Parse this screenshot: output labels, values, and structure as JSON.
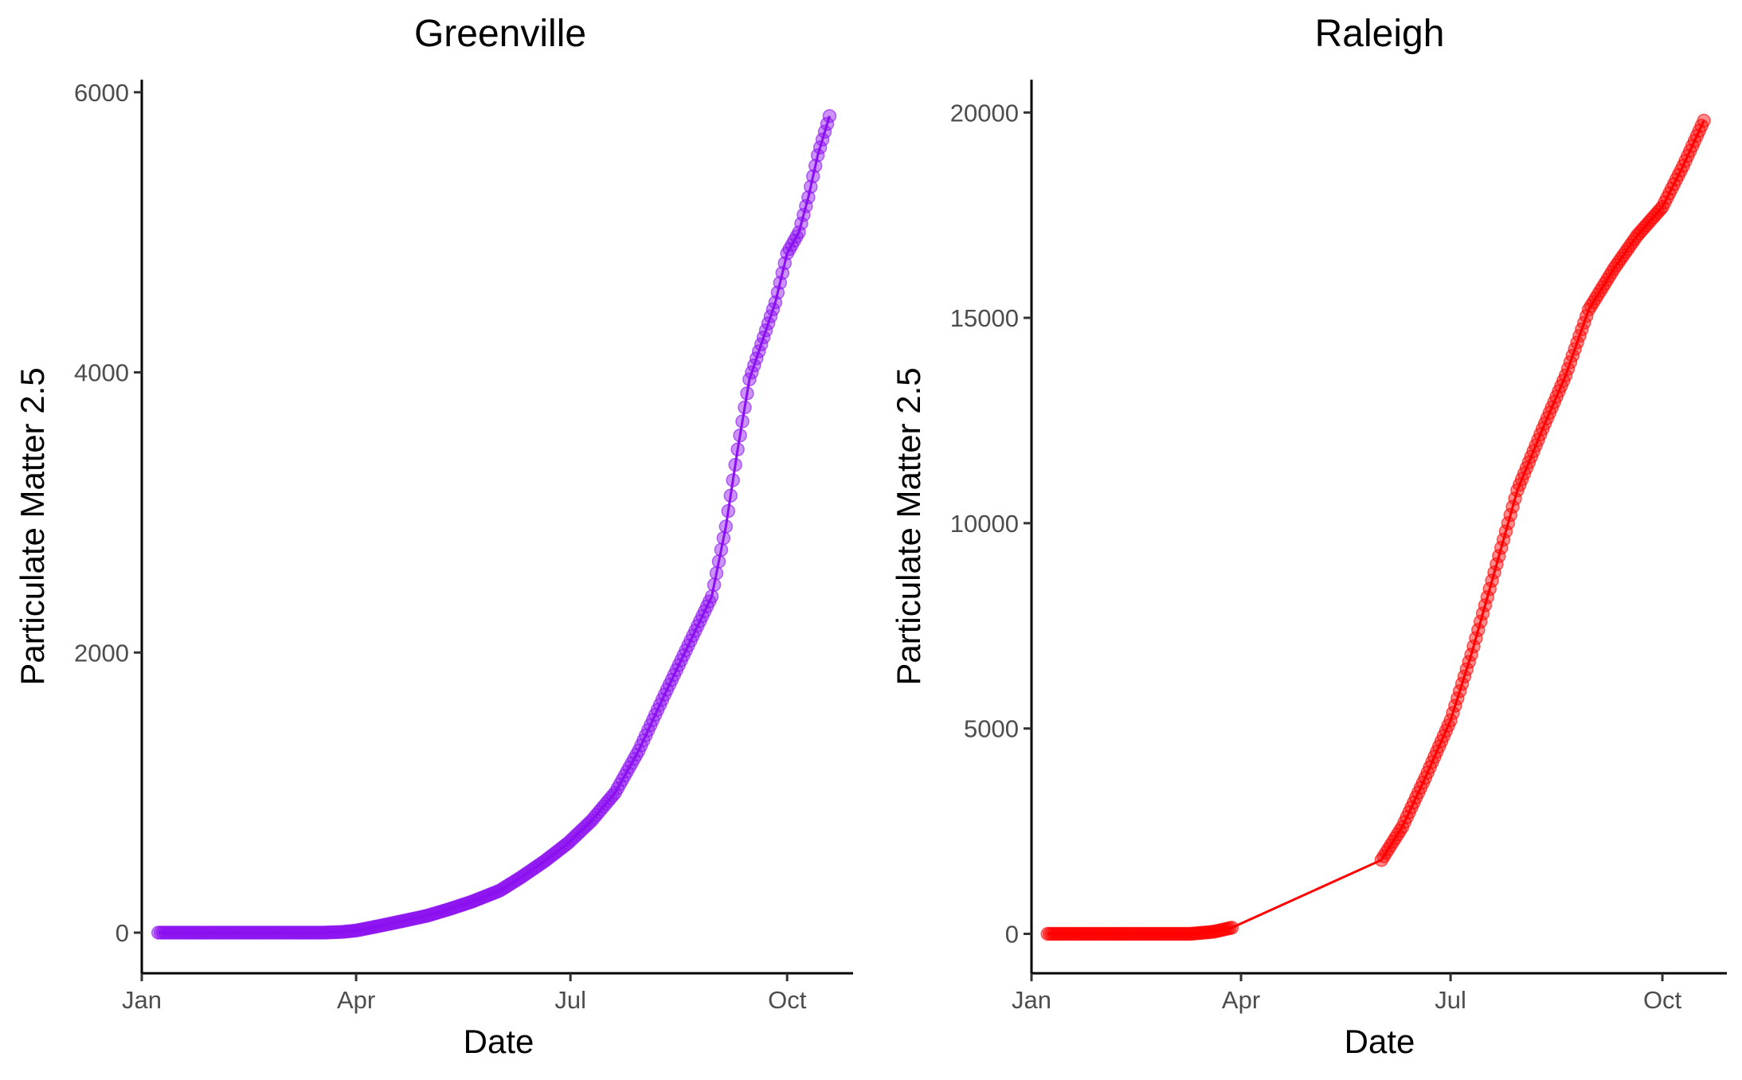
{
  "chart_data": [
    {
      "type": "line",
      "title": "Greenville",
      "xlabel": "Date",
      "ylabel": "Particulate Matter 2.5",
      "xlim": [
        "2020-01-01",
        "2020-10-29"
      ],
      "ylim": [
        -290,
        6090
      ],
      "x_ticks": [
        {
          "date": "2020-01-01",
          "label": "Jan"
        },
        {
          "date": "2020-04-01",
          "label": "Apr"
        },
        {
          "date": "2020-07-01",
          "label": "Jul"
        },
        {
          "date": "2020-10-01",
          "label": "Oct"
        }
      ],
      "y_ticks": [
        0,
        2000,
        4000,
        6000
      ],
      "grid": false,
      "legend": "none",
      "color": "#8b0ff0",
      "marker": "circle",
      "start_date": "2020-01-08",
      "end_date": "2020-10-19",
      "points": [
        [
          "2020-01-08",
          0
        ],
        [
          "2020-03-18",
          0
        ],
        [
          "2020-03-26",
          5
        ],
        [
          "2020-04-01",
          15
        ],
        [
          "2020-04-10",
          45
        ],
        [
          "2020-04-20",
          80
        ],
        [
          "2020-05-01",
          120
        ],
        [
          "2020-05-10",
          165
        ],
        [
          "2020-05-20",
          220
        ],
        [
          "2020-06-01",
          300
        ],
        [
          "2020-06-10",
          395
        ],
        [
          "2020-06-20",
          510
        ],
        [
          "2020-06-30",
          640
        ],
        [
          "2020-07-10",
          800
        ],
        [
          "2020-07-20",
          1000
        ],
        [
          "2020-07-30",
          1300
        ],
        [
          "2020-08-10",
          1700
        ],
        [
          "2020-08-20",
          2050
        ],
        [
          "2020-08-30",
          2400
        ],
        [
          "2020-09-05",
          2900
        ],
        [
          "2020-09-10",
          3450
        ],
        [
          "2020-09-15",
          3950
        ],
        [
          "2020-09-20",
          4200
        ],
        [
          "2020-09-26",
          4500
        ],
        [
          "2020-10-01",
          4850
        ],
        [
          "2020-10-06",
          5000
        ],
        [
          "2020-10-10",
          5250
        ],
        [
          "2020-10-14",
          5550
        ],
        [
          "2020-10-19",
          5830
        ]
      ]
    },
    {
      "type": "line",
      "title": "Raleigh",
      "xlabel": "Date",
      "ylabel": "Particulate Matter 2.5",
      "xlim": [
        "2020-01-01",
        "2020-10-29"
      ],
      "ylim": [
        -960,
        20800
      ],
      "x_ticks": [
        {
          "date": "2020-01-01",
          "label": "Jan"
        },
        {
          "date": "2020-04-01",
          "label": "Apr"
        },
        {
          "date": "2020-07-01",
          "label": "Jul"
        },
        {
          "date": "2020-10-01",
          "label": "Oct"
        }
      ],
      "y_ticks": [
        0,
        5000,
        10000,
        15000,
        20000
      ],
      "grid": false,
      "legend": "none",
      "color": "#ff0000",
      "marker": "circle",
      "start_date": "2020-01-08",
      "end_date": "2020-10-19",
      "points": [
        [
          "2020-01-08",
          0
        ],
        [
          "2020-03-10",
          0
        ],
        [
          "2020-03-20",
          50
        ],
        [
          "2020-03-28",
          150
        ],
        [
          "2020-06-01",
          1800
        ],
        [
          "2020-06-10",
          2600
        ],
        [
          "2020-06-20",
          3800
        ],
        [
          "2020-07-01",
          5200
        ],
        [
          "2020-07-10",
          6800
        ],
        [
          "2020-07-20",
          8800
        ],
        [
          "2020-07-30",
          10800
        ],
        [
          "2020-08-10",
          12300
        ],
        [
          "2020-08-20",
          13600
        ],
        [
          "2020-08-30",
          15200
        ],
        [
          "2020-09-10",
          16200
        ],
        [
          "2020-09-20",
          17000
        ],
        [
          "2020-10-01",
          17700
        ],
        [
          "2020-10-10",
          18700
        ],
        [
          "2020-10-19",
          19800
        ]
      ],
      "marker_gaps": [
        [
          "2020-03-29",
          "2020-05-31"
        ]
      ]
    }
  ]
}
